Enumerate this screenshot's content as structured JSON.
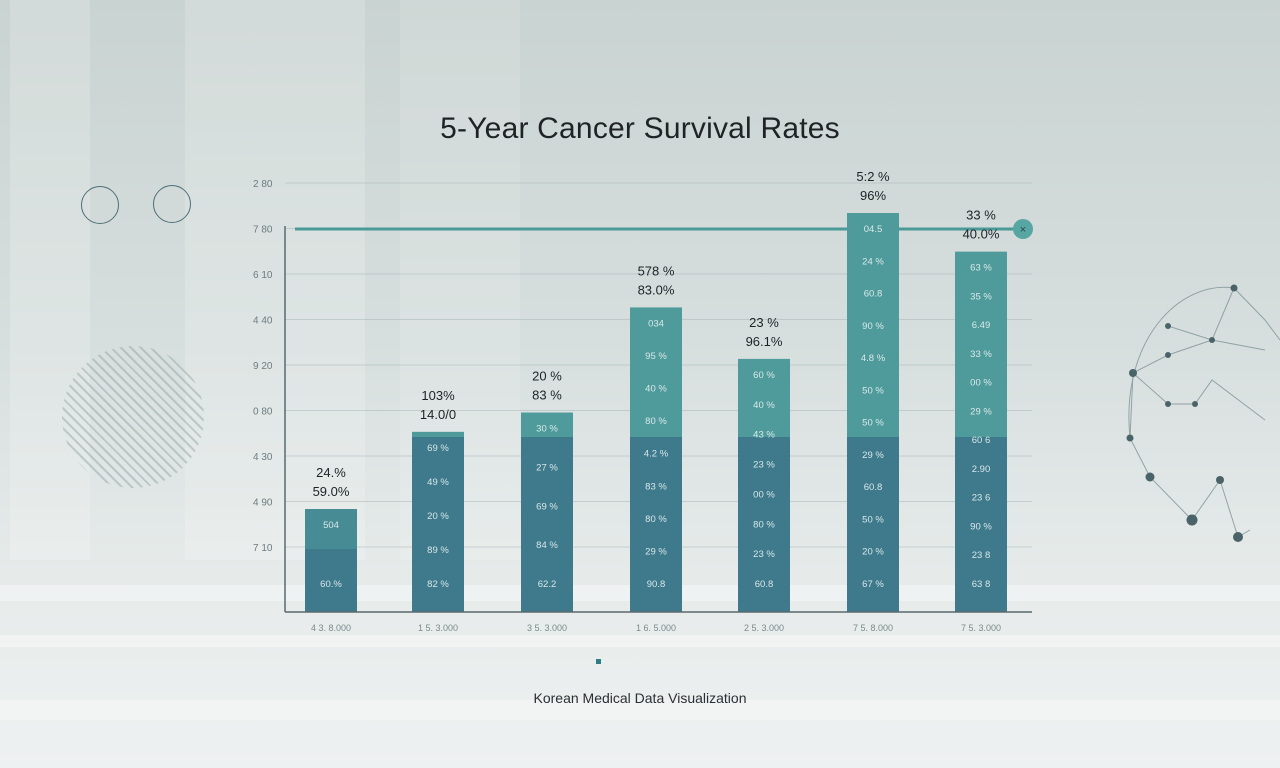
{
  "chart_data": {
    "type": "bar",
    "title": "5-Year Cancer Survival Rates",
    "subtitle": "Korean Medical Data Visualization",
    "y_tick_labels": [
      "2 80",
      "7 80",
      "6 10",
      "4 40",
      "9 20",
      "0 80",
      "4 30",
      "4 90",
      "7 10"
    ],
    "categories": [
      "4 3. 8.000",
      "1 5. 3.000",
      "3 5. 3.000",
      "1 6. 5.000",
      "2 5. 3.000",
      "7 5. 8.000",
      "7 5. 3.000"
    ],
    "values": [
      24.0,
      42.0,
      46.5,
      71.0,
      59.0,
      93.0,
      84.0
    ],
    "top_labels": [
      [
        "24.%",
        "59.0%"
      ],
      [
        "103%",
        "14.0/0"
      ],
      [
        "20 %",
        "83 %"
      ],
      [
        "578 %",
        "83.0%"
      ],
      [
        "23 %",
        "96.1%"
      ],
      [
        "5:2 %",
        "96%"
      ],
      [
        "33 %",
        "40.0%"
      ]
    ],
    "segment_labels": [
      [
        "504",
        "60.%"
      ],
      [
        "69 %",
        "49 %",
        "20 %",
        "89 %",
        "82 %"
      ],
      [
        "30 %",
        "27 %",
        "69 %",
        "84 %",
        "62.2"
      ],
      [
        "034",
        "95 %",
        "40 %",
        "80 %",
        "4.2 %",
        "83 %",
        "80 %",
        "29 %",
        "90.8"
      ],
      [
        "60 %",
        "40 %",
        "43 %",
        "23 %",
        "00 %",
        "80 %",
        "23 %",
        "60.8"
      ],
      [
        "04.5",
        "24 %",
        "60.8",
        "90 %",
        "4.8 %",
        "50 %",
        "50 %",
        "29 %",
        "60.8",
        "50 %",
        "20 %",
        "67 %"
      ],
      [
        "63 %",
        "35 %",
        "6.49",
        "33 %",
        "00 %",
        "29 %",
        "60 6",
        "2.90",
        "23 6",
        "90 %",
        "23 8",
        "63 8"
      ]
    ],
    "reference_line": {
      "value": 85
    },
    "ylim": [
      0,
      100
    ],
    "legend": [
      "",
      ""
    ],
    "colors": {
      "upper": "#4f9a9a",
      "lower": "#3e7a8c",
      "axis": "#5a6a6e",
      "reference": "#4a9a98"
    }
  }
}
